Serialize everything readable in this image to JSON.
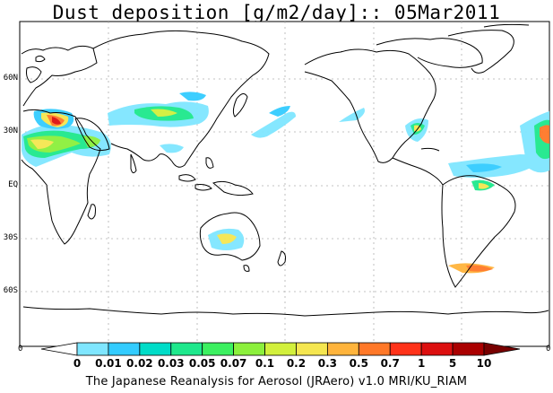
{
  "title": "Dust deposition [g/m2/day]:: 05Mar2011",
  "caption": "The Japanese Reanalysis for Aerosol (JRAero) v1.0 MRI/KU_RIAM",
  "lat_labels": [
    "60N",
    "30N",
    "EQ",
    "30S",
    "60S"
  ],
  "edge_labels": {
    "left": "0",
    "right": "0"
  },
  "colorbar": {
    "labels": [
      "0",
      "0.01",
      "0.02",
      "0.03",
      "0.05",
      "0.07",
      "0.1",
      "0.2",
      "0.3",
      "0.5",
      "0.7",
      "1",
      "5",
      "10"
    ],
    "colors": [
      "#ffffff",
      "#7fe6ff",
      "#33ccff",
      "#00dcc8",
      "#1ee88c",
      "#3cf060",
      "#8cf03c",
      "#d2f03c",
      "#f5e650",
      "#ffb43c",
      "#ff7828",
      "#ff3219",
      "#dc0f0f",
      "#aa0000",
      "#780000"
    ]
  }
}
